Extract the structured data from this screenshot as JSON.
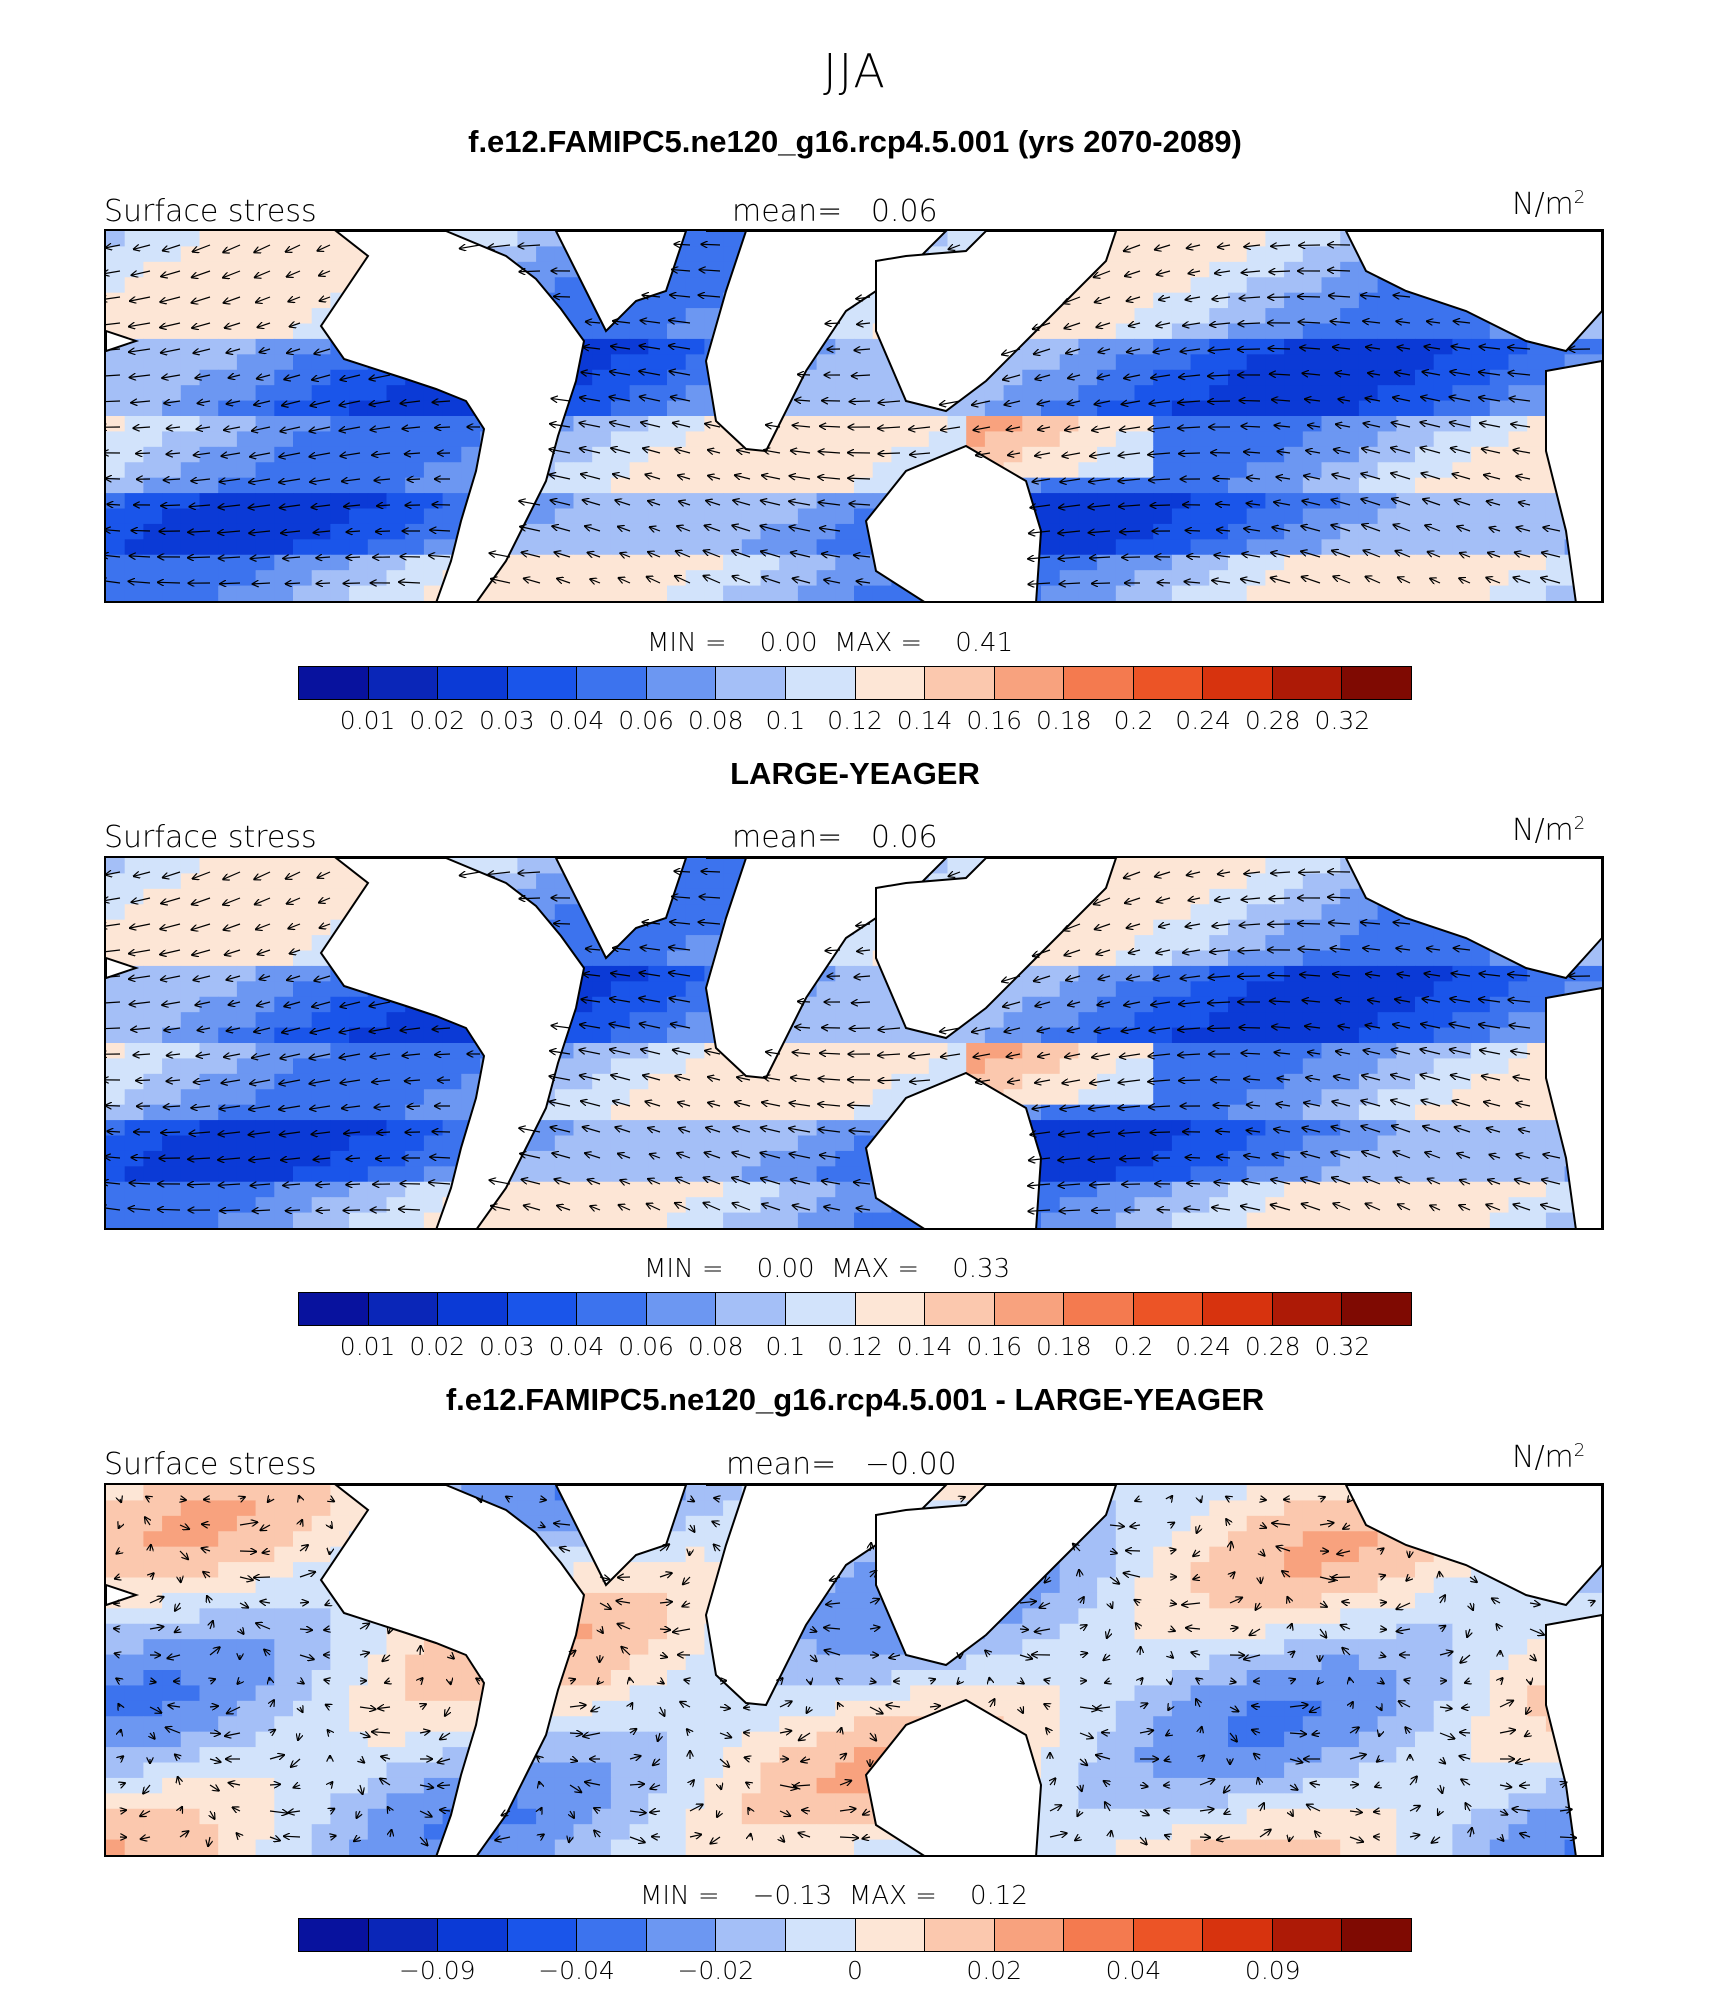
{
  "season": "JJA",
  "colors": {
    "abs_scale": [
      "#08129e",
      "#0a26b8",
      "#0b3ad6",
      "#1a55ea",
      "#3c73ee",
      "#6c97f2",
      "#a4bff7",
      "#d2e3fb",
      "#fde6d6",
      "#fbc8ae",
      "#f8a27e",
      "#f47a4f",
      "#ec5426",
      "#d7330e",
      "#ad1a06",
      "#7f0a02"
    ],
    "diff_scale": [
      "#08129e",
      "#0a26b8",
      "#0b3ad6",
      "#1a55ea",
      "#3c73ee",
      "#6c97f2",
      "#a4bff7",
      "#d2e3fb",
      "#fde6d6",
      "#fbc8ae",
      "#f8a27e",
      "#f47a4f",
      "#ec5426",
      "#d7330e",
      "#ad1a06",
      "#7f0a02"
    ],
    "land": "#ffffff"
  },
  "panels": [
    {
      "title": "f.e12.FAMIPC5.ne120_g16.rcp4.5.001 (yrs 2070-2089)",
      "variable": "Surface stress",
      "mean_label": "mean=",
      "mean_value": "0.06",
      "units_base": "N/m",
      "units_exp": "2",
      "min_label": "MIN =",
      "min_value": "0.00",
      "max_label": "MAX =",
      "max_value": "0.41",
      "colorbar_ticks": [
        "0.01",
        "0.02",
        "0.03",
        "0.04",
        "0.06",
        "0.08",
        "0.1",
        "0.12",
        "0.14",
        "0.16",
        "0.18",
        "0.2",
        "0.24",
        "0.28",
        "0.32"
      ]
    },
    {
      "title": "LARGE-YEAGER",
      "variable": "Surface stress",
      "mean_label": "mean=",
      "mean_value": "0.06",
      "units_base": "N/m",
      "units_exp": "2",
      "min_label": "MIN =",
      "min_value": "0.00",
      "max_label": "MAX =",
      "max_value": "0.33",
      "colorbar_ticks": [
        "0.01",
        "0.02",
        "0.03",
        "0.04",
        "0.06",
        "0.08",
        "0.1",
        "0.12",
        "0.14",
        "0.16",
        "0.18",
        "0.2",
        "0.24",
        "0.28",
        "0.32"
      ]
    },
    {
      "title": "f.e12.FAMIPC5.ne120_g16.rcp4.5.001 - LARGE-YEAGER",
      "variable": "Surface stress",
      "mean_label": "mean=",
      "mean_value": "−0.00",
      "units_base": "N/m",
      "units_exp": "2",
      "min_label": "MIN =",
      "min_value": "−0.13",
      "max_label": "MAX =",
      "max_value": "0.12",
      "colorbar_ticks": [
        "−0.09",
        "−0.04",
        "−0.02",
        "0",
        "0.02",
        "0.04",
        "0.09"
      ]
    }
  ]
}
